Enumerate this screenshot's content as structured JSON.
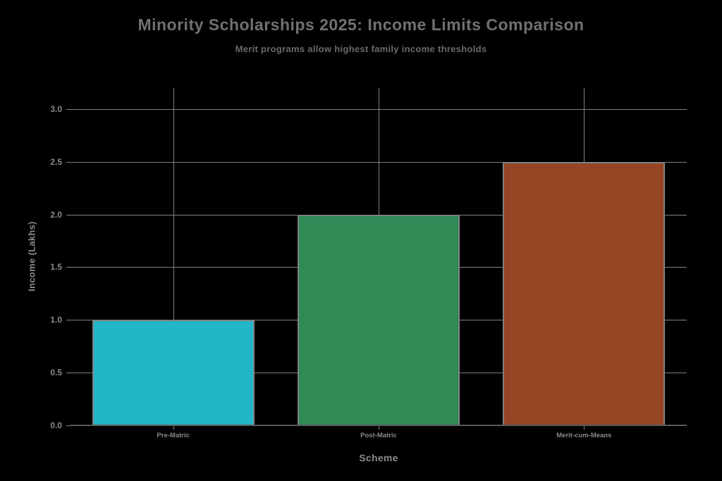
{
  "chart_data": {
    "type": "bar",
    "title": "Minority Scholarships 2025: Income Limits Comparison",
    "subtitle": "Merit programs allow highest family income thresholds",
    "categories": [
      "Pre-Matric",
      "Post-Matric",
      "Merit-cum-Means"
    ],
    "values": [
      1.0,
      2.0,
      2.5
    ],
    "xlabel": "Scheme",
    "ylabel": "Income (Lakhs)",
    "ylim": [
      0,
      3.2
    ],
    "yticks": [
      0.0,
      0.5,
      1.0,
      1.5,
      2.0,
      2.5,
      3.0
    ],
    "ytick_labels": [
      "0.0",
      "0.5",
      "1.0",
      "1.5",
      "2.0",
      "2.5",
      "3.0"
    ],
    "grid": true,
    "legend": "none",
    "colors": {
      "background": "#000000",
      "bar_fills": [
        "#23b5c8",
        "#2f8a56",
        "#964525"
      ],
      "bar_edge": "#828282",
      "gridline": "#808080",
      "axis_line": "#5a5a5a",
      "title_text": "#717171",
      "subtitle_text": "#6a6a6a",
      "tick_text": "#8a8a8a"
    }
  }
}
